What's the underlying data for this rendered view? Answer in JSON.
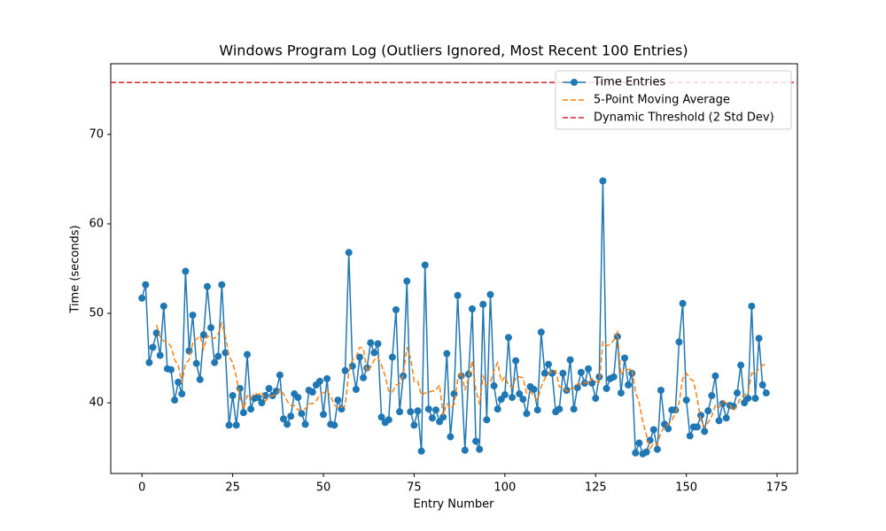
{
  "chart_data": {
    "type": "line",
    "title": "Windows Program Log (Outliers Ignored, Most Recent 100 Entries)",
    "xlabel": "Entry Number",
    "ylabel": "Time (seconds)",
    "x": [
      0,
      1,
      2,
      3,
      4,
      5,
      6,
      7,
      8,
      9,
      10,
      11,
      12,
      13,
      14,
      15,
      16,
      17,
      18,
      19,
      20,
      21,
      22,
      23,
      24,
      25,
      26,
      27,
      28,
      29,
      30,
      31,
      32,
      33,
      34,
      35,
      36,
      37,
      38,
      39,
      40,
      41,
      42,
      43,
      44,
      45,
      46,
      47,
      48,
      49,
      50,
      51,
      52,
      53,
      54,
      55,
      56,
      57,
      58,
      59,
      60,
      61,
      62,
      63,
      64,
      65,
      66,
      67,
      68,
      69,
      70,
      71,
      72,
      73,
      74,
      75,
      76,
      77,
      78,
      79,
      80,
      81,
      82,
      83,
      84,
      85,
      86,
      87,
      88,
      89,
      90,
      91,
      92,
      93,
      94,
      95,
      96,
      97,
      98,
      99,
      100,
      101,
      102,
      103,
      104,
      105,
      106,
      107,
      108,
      109,
      110,
      111,
      112,
      113,
      114,
      115,
      116,
      117,
      118,
      119,
      120,
      121,
      122,
      123,
      124,
      125,
      126,
      127,
      128,
      129,
      130,
      131,
      132,
      133,
      134,
      135,
      136,
      137,
      138,
      139,
      140,
      141,
      142,
      143,
      144,
      145,
      146,
      147,
      148,
      149,
      150,
      151,
      152,
      153,
      154,
      155,
      156,
      157,
      158,
      159,
      160,
      161,
      162,
      163,
      164,
      165,
      166,
      167,
      168,
      169,
      170,
      171,
      172
    ],
    "series": [
      {
        "name": "Time Entries",
        "color": "#1f77b4",
        "marker": true,
        "dashed": false,
        "values": [
          51.7,
          53.2,
          44.5,
          46.2,
          47.8,
          45.3,
          50.8,
          43.8,
          43.7,
          40.3,
          42.3,
          41.0,
          54.7,
          45.8,
          49.8,
          44.4,
          42.6,
          47.6,
          53.0,
          48.4,
          44.5,
          45.2,
          53.2,
          45.6,
          37.5,
          40.8,
          37.5,
          41.6,
          38.9,
          45.4,
          39.3,
          40.5,
          40.6,
          40.0,
          40.8,
          41.6,
          40.8,
          41.3,
          43.1,
          38.2,
          37.6,
          38.5,
          41.0,
          40.6,
          38.8,
          37.6,
          41.4,
          41.2,
          42.0,
          42.4,
          38.7,
          42.7,
          37.6,
          37.5,
          40.3,
          39.3,
          43.6,
          56.8,
          44.1,
          41.5,
          45.1,
          42.8,
          43.9,
          46.7,
          45.6,
          46.6,
          38.4,
          37.8,
          38.1,
          45.1,
          50.4,
          39.0,
          43.0,
          53.6,
          39.0,
          37.5,
          39.1,
          34.6,
          55.4,
          39.3,
          38.3,
          39.2,
          37.9,
          38.4,
          45.5,
          36.2,
          41.0,
          52.0,
          43.0,
          34.7,
          43.2,
          50.5,
          35.7,
          34.8,
          51.0,
          38.1,
          52.1,
          41.9,
          39.3,
          40.4,
          40.9,
          47.3,
          40.6,
          44.7,
          41.0,
          40.4,
          38.8,
          41.8,
          41.5,
          39.2,
          47.9,
          43.3,
          44.3,
          43.3,
          39.0,
          39.3,
          43.3,
          41.4,
          44.8,
          39.3,
          41.7,
          43.4,
          42.2,
          43.8,
          42.2,
          40.5,
          42.9,
          64.8,
          41.6,
          42.7,
          42.9,
          47.4,
          41.1,
          45.0,
          42.0,
          43.3,
          34.4,
          35.5,
          34.3,
          34.5,
          35.8,
          37.0,
          34.8,
          41.4,
          37.6,
          37.1,
          39.2,
          39.2,
          46.8,
          51.1,
          40.3,
          36.3,
          37.3,
          37.3,
          38.6,
          36.8,
          39.1,
          40.8,
          43.0,
          38.0,
          39.9,
          38.3,
          39.7,
          39.6,
          41.1,
          44.2,
          40.0,
          40.5,
          50.8,
          40.5,
          47.2,
          42.0,
          41.1
        ]
      },
      {
        "name": "5-Point Moving Average",
        "color": "#ff7f0e",
        "marker": false,
        "dashed": true,
        "values": [
          null,
          null,
          null,
          null,
          48.7,
          47.4,
          46.9,
          46.8,
          46.3,
          44.8,
          44.2,
          42.2,
          44.4,
          44.8,
          46.7,
          47.1,
          47.5,
          46.0,
          47.5,
          47.2,
          47.2,
          47.7,
          48.9,
          47.4,
          45.2,
          44.5,
          42.9,
          40.6,
          39.3,
          40.8,
          40.5,
          41.1,
          40.9,
          41.2,
          40.2,
          40.7,
          40.8,
          40.9,
          41.5,
          41.0,
          40.2,
          39.7,
          39.7,
          39.2,
          39.3,
          39.3,
          39.9,
          39.9,
          40.2,
          40.9,
          41.1,
          41.4,
          40.7,
          39.8,
          39.4,
          39.5,
          39.7,
          43.5,
          44.8,
          45.1,
          46.2,
          46.1,
          43.5,
          44.0,
          44.8,
          45.1,
          44.2,
          43.0,
          41.3,
          41.2,
          42.0,
          42.1,
          43.1,
          46.2,
          45.0,
          42.4,
          42.4,
          40.8,
          41.1,
          41.2,
          41.3,
          41.4,
          42.0,
          38.6,
          39.9,
          39.4,
          39.8,
          42.6,
          43.5,
          41.4,
          42.8,
          44.7,
          41.4,
          39.8,
          43.0,
          42.0,
          42.3,
          43.6,
          44.5,
          42.4,
          42.9,
          42.0,
          41.7,
          42.8,
          42.9,
          42.8,
          41.1,
          41.3,
          40.7,
          40.3,
          41.8,
          42.7,
          43.2,
          43.6,
          43.6,
          41.8,
          41.8,
          41.3,
          41.6,
          41.6,
          42.1,
          42.1,
          42.3,
          42.1,
          42.7,
          42.4,
          42.3,
          46.8,
          46.4,
          46.5,
          47.0,
          47.9,
          43.1,
          43.8,
          43.7,
          43.8,
          41.2,
          40.0,
          37.9,
          36.4,
          34.9,
          35.4,
          35.3,
          36.7,
          37.3,
          37.6,
          38.0,
          38.9,
          40.0,
          42.7,
          43.3,
          42.7,
          42.4,
          40.5,
          38.0,
          37.3,
          37.8,
          38.5,
          39.7,
          39.5,
          40.2,
          40.0,
          39.8,
          39.1,
          39.7,
          40.6,
          40.9,
          41.1,
          43.3,
          43.2,
          43.8,
          44.2,
          44.3
        ]
      }
    ],
    "threshold": {
      "name": "Dynamic Threshold (2 Std Dev)",
      "color": "#d62728",
      "value": 75.8
    },
    "xlim": [
      -8.6,
      180.6
    ],
    "ylim": [
      32.1,
      77.9
    ],
    "xticks": [
      0,
      25,
      50,
      75,
      100,
      125,
      150,
      175
    ],
    "yticks": [
      40,
      50,
      60,
      70
    ],
    "grid": false,
    "legend": "upper right"
  }
}
